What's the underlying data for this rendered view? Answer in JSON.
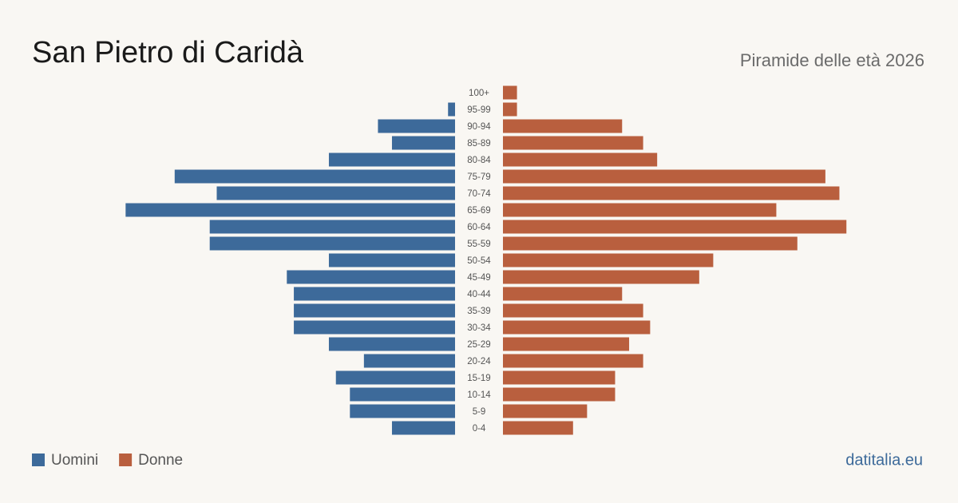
{
  "chart_data": {
    "type": "pyramid",
    "title": "San Pietro di Caridà",
    "subtitle": "Piramide delle età 2026",
    "source": "datitalia.eu",
    "categories": [
      "100+",
      "95-99",
      "90-94",
      "85-89",
      "80-84",
      "75-79",
      "70-74",
      "65-69",
      "60-64",
      "55-59",
      "50-54",
      "45-49",
      "40-44",
      "35-39",
      "30-34",
      "25-29",
      "20-24",
      "15-19",
      "10-14",
      "5-9",
      "0-4"
    ],
    "series": [
      {
        "name": "Uomini",
        "color": "#3d6a9a",
        "side": "left",
        "values": [
          0,
          1,
          11,
          9,
          18,
          40,
          34,
          47,
          35,
          35,
          18,
          24,
          23,
          23,
          23,
          18,
          13,
          17,
          15,
          15,
          9
        ]
      },
      {
        "name": "Donne",
        "color": "#b95f3e",
        "side": "right",
        "values": [
          2,
          2,
          17,
          20,
          22,
          46,
          48,
          39,
          49,
          42,
          30,
          28,
          17,
          20,
          21,
          18,
          20,
          16,
          16,
          12,
          10
        ]
      }
    ]
  }
}
